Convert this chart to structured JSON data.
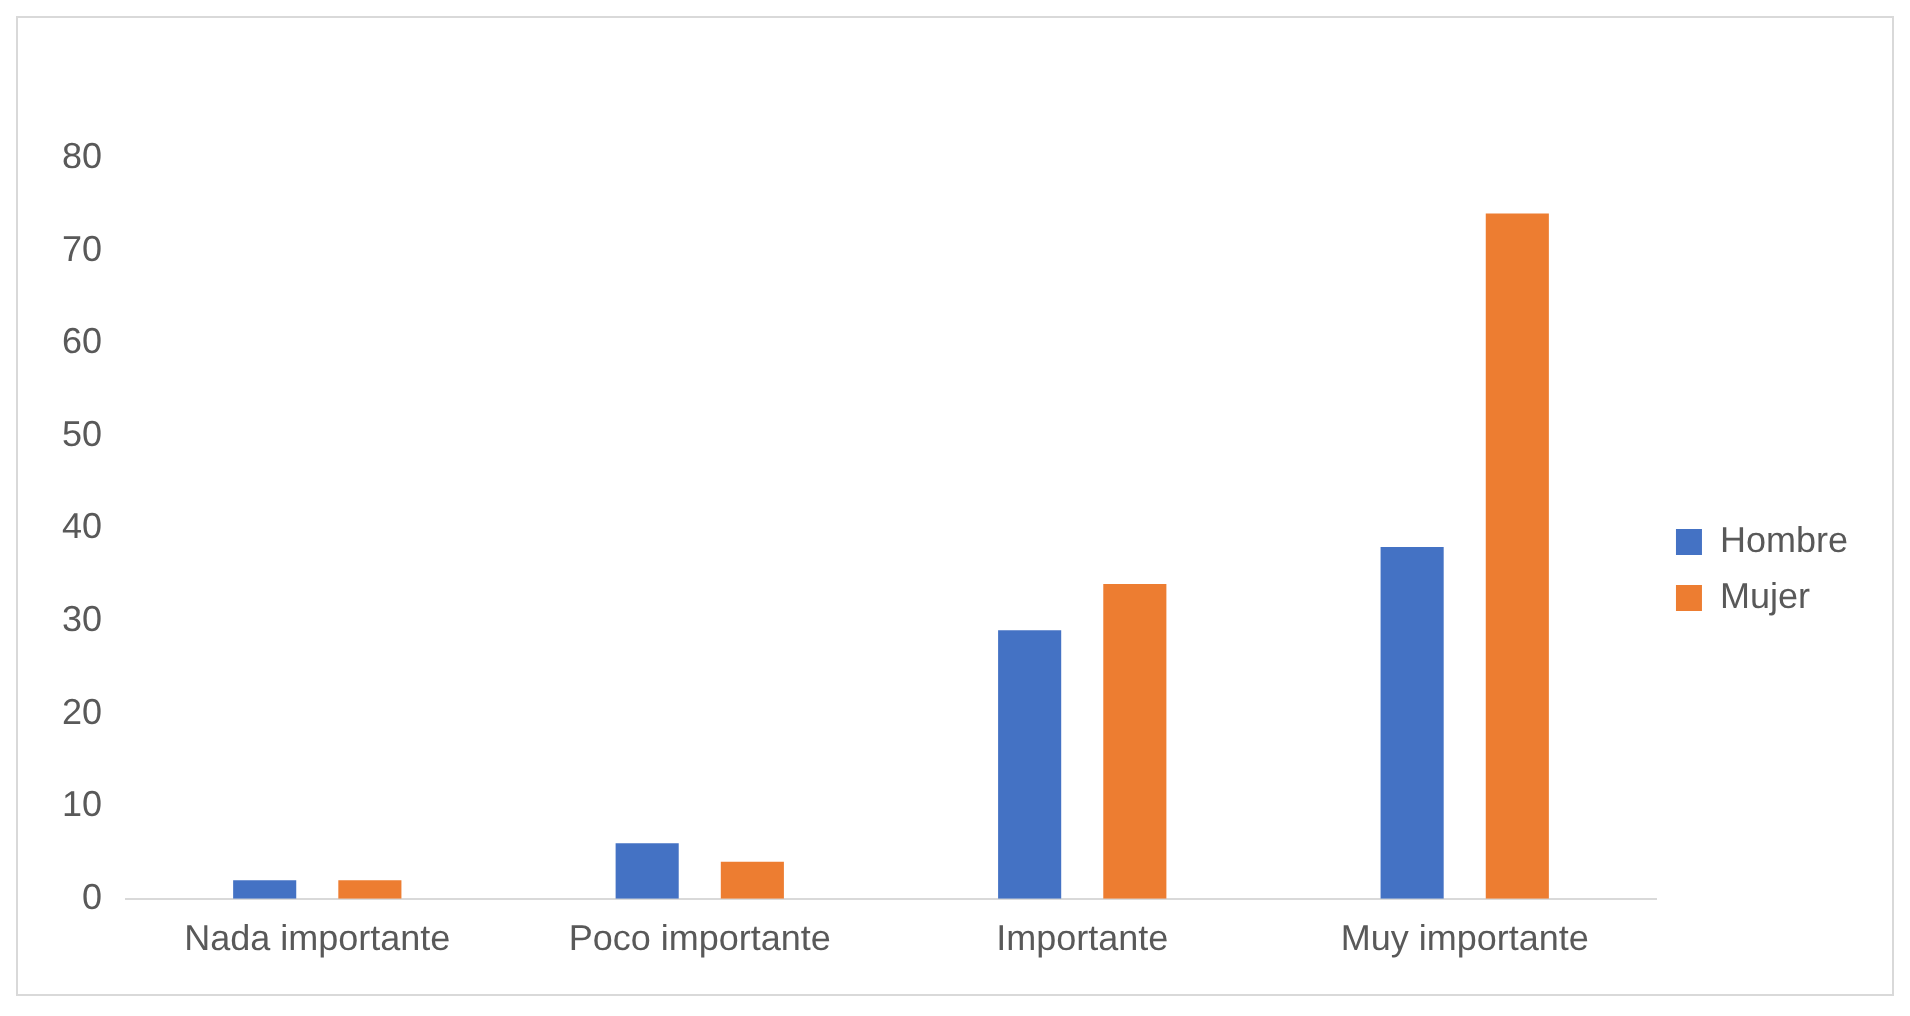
{
  "chart_data": {
    "type": "bar",
    "categories": [
      "Nada importante",
      "Poco importante",
      "Importante",
      "Muy importante"
    ],
    "series": [
      {
        "name": "Hombre",
        "color": "#4472c4",
        "values": [
          2,
          6,
          29,
          38
        ]
      },
      {
        "name": "Mujer",
        "color": "#ed7d31",
        "values": [
          2,
          4,
          34,
          74
        ]
      }
    ],
    "ylim": [
      0,
      80
    ],
    "yticks": [
      0,
      10,
      20,
      30,
      40,
      50,
      60,
      70,
      80
    ],
    "grid": false,
    "legend": "right"
  }
}
